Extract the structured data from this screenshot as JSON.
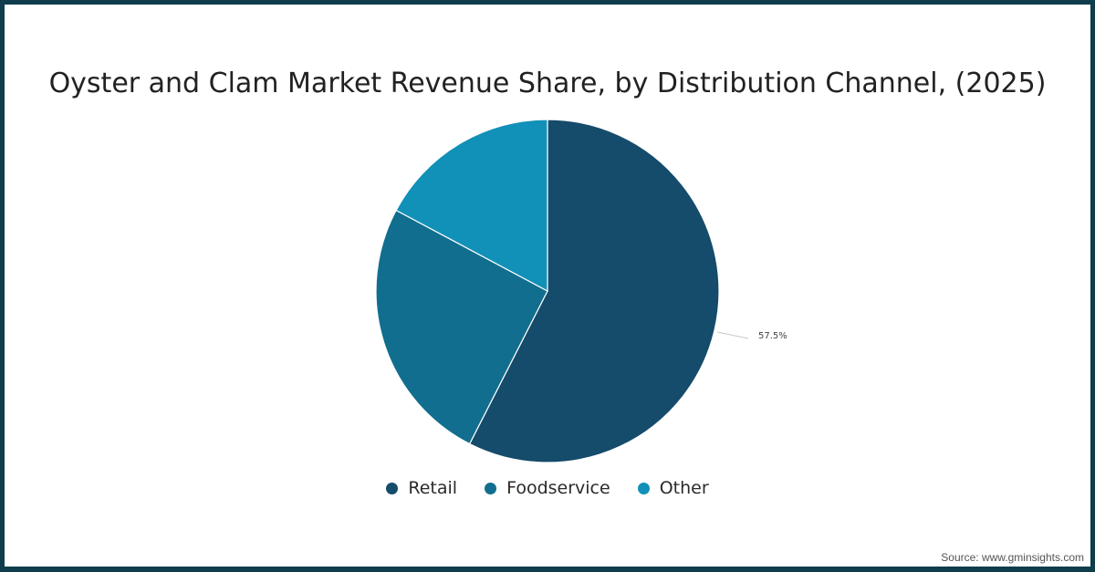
{
  "title": "Oyster and Clam Market Revenue Share, by Distribution Channel, (2025)",
  "source": "Source: www.gminsights.com",
  "colors": {
    "border": "#0f3d4c",
    "retail": "#154b6b",
    "foodservice": "#116e8e",
    "other": "#1190b8"
  },
  "data_labels": {
    "retail": "57.5%"
  },
  "legend": [
    {
      "label": "Retail",
      "color": "#154b6b"
    },
    {
      "label": "Foodservice",
      "color": "#116e8e"
    },
    {
      "label": "Other",
      "color": "#1190b8"
    }
  ],
  "chart_data": {
    "type": "pie",
    "title": "Oyster and Clam Market Revenue Share, by Distribution Channel, (2025)",
    "categories": [
      "Retail",
      "Foodservice",
      "Other"
    ],
    "values": [
      57.5,
      25.3,
      17.2
    ],
    "labels_shown": {
      "Retail": "57.5%"
    },
    "colors": [
      "#154b6b",
      "#116e8e",
      "#1190b8"
    ],
    "start_angle": "12 o'clock, clockwise",
    "legend_position": "bottom",
    "xlabel": "",
    "ylabel": ""
  }
}
